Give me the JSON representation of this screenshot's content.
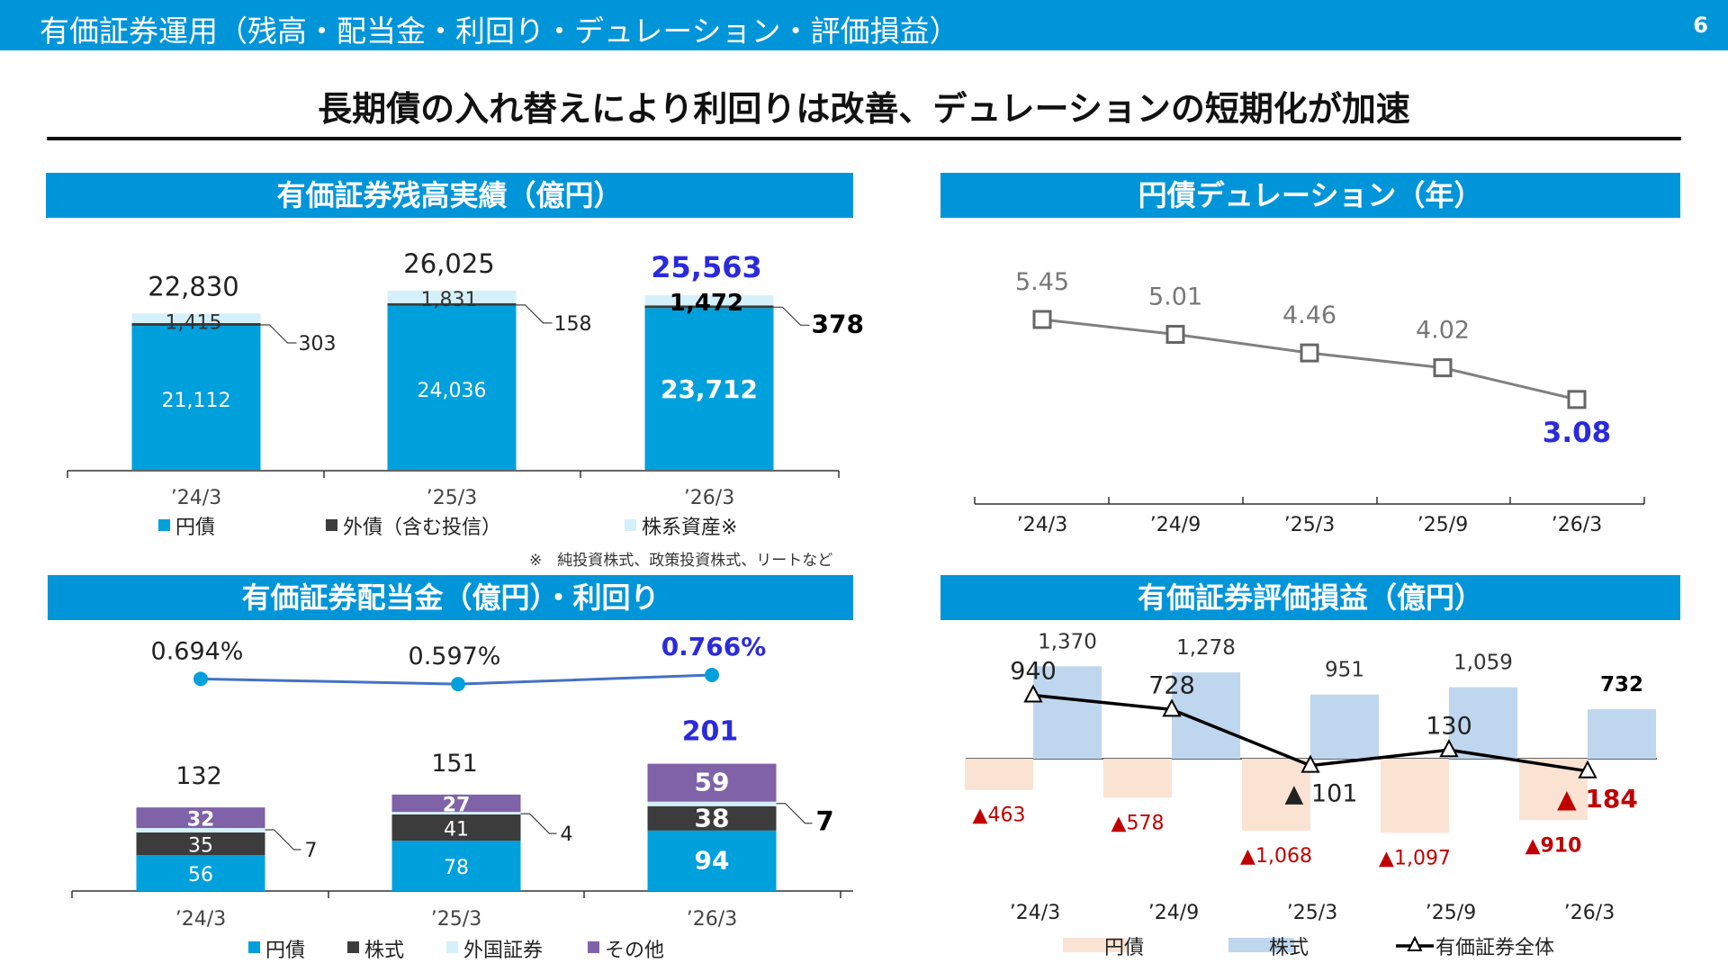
{
  "header": {
    "title": "有価証券運用（残高・配当金・利回り・デュレーション・評価損益）",
    "page_number": "6"
  },
  "headline": "長期債の入れ替えにより利回りは改善、デュレーションの短期化が加速",
  "colors": {
    "brand": "#0095d9",
    "yen_bond": "#00a0dc",
    "foreign_bond": "#3c3c3c",
    "equity_assets": "#d4f0fb",
    "other": "#7f62a8",
    "highlight": "#2b2bdc",
    "loss_text": "#c00000",
    "loss_fill": "#fbe3d4",
    "equity_fill": "#bfd7ee",
    "duration_line": "#808080",
    "yield_line": "#4472c4"
  },
  "panels": {
    "balance": {
      "title": "有価証券残高実績（億円）",
      "note": "※　純投資株式、政策投資株式、リートなど"
    },
    "duration": {
      "title": "円債デュレーション（年）"
    },
    "dividend": {
      "title": "有価証券配当金（億円）・利回り"
    },
    "valuation": {
      "title": "有価証券評価損益（億円）"
    }
  },
  "chart_data": [
    {
      "type": "bar",
      "stacked": true,
      "title": "有価証券残高実績（億円）",
      "categories": [
        "’24/3",
        "’25/3",
        "’26/3"
      ],
      "series": [
        {
          "name": "円債",
          "values": [
            21112,
            24036,
            23712
          ]
        },
        {
          "name": "外債（含む投信）",
          "values": [
            303,
            158,
            378
          ]
        },
        {
          "name": "株系資産※",
          "values": [
            1415,
            1831,
            1472
          ]
        }
      ],
      "totals": [
        22830,
        26025,
        25563
      ],
      "labels": {
        "totals": [
          "22,830",
          "26,025",
          "25,563"
        ],
        "yen_bond": [
          "21,112",
          "24,036",
          "23,712"
        ],
        "foreign": [
          "303",
          "158",
          "378"
        ],
        "equity": [
          "1,415",
          "1,831",
          "1,472"
        ]
      },
      "legend_position": "bottom"
    },
    {
      "type": "line",
      "title": "円債デュレーション（年）",
      "categories": [
        "’24/3",
        "’24/9",
        "’25/3",
        "’25/9",
        "’26/3"
      ],
      "values": [
        5.45,
        5.01,
        4.46,
        4.02,
        3.08
      ],
      "labels": [
        "5.45",
        "5.01",
        "4.46",
        "4.02",
        "3.08"
      ]
    },
    {
      "type": "bar",
      "stacked": true,
      "title": "有価証券配当金（億円）・利回り",
      "categories": [
        "’24/3",
        "’25/3",
        "’26/3"
      ],
      "series": [
        {
          "name": "円債",
          "values": [
            56,
            78,
            94
          ]
        },
        {
          "name": "株式",
          "values": [
            35,
            41,
            38
          ]
        },
        {
          "name": "外国証券",
          "values": [
            7,
            4,
            7
          ]
        },
        {
          "name": "その他",
          "values": [
            32,
            27,
            59
          ]
        }
      ],
      "totals": [
        132,
        151,
        201
      ],
      "labels": {
        "totals": [
          "132",
          "151",
          "201"
        ],
        "yen_bond": [
          "56",
          "78",
          "94"
        ],
        "stock": [
          "35",
          "41",
          "38"
        ],
        "foreign": [
          "7",
          "4",
          "7"
        ],
        "other": [
          "32",
          "27",
          "59"
        ]
      },
      "yield": {
        "values": [
          0.694,
          0.597,
          0.766
        ],
        "labels": [
          "0.694%",
          "0.597%",
          "0.766%"
        ]
      },
      "legend_position": "bottom"
    },
    {
      "type": "bar",
      "title": "有価証券評価損益（億円）",
      "categories": [
        "’24/3",
        "’24/9",
        "’25/3",
        "’25/9",
        "’26/3"
      ],
      "series": [
        {
          "name": "円債",
          "values": [
            -463,
            -578,
            -1068,
            -1097,
            -910
          ],
          "labels": [
            "▲463",
            "▲578",
            "▲1,068",
            "▲1,097",
            "▲910"
          ]
        },
        {
          "name": "株式",
          "values": [
            1370,
            1278,
            951,
            1059,
            732
          ],
          "labels": [
            "1,370",
            "1,278",
            "951",
            "1,059",
            "732"
          ]
        },
        {
          "name": "有価証券全体",
          "type": "line",
          "values": [
            940,
            728,
            -101,
            130,
            -184
          ],
          "labels": [
            "940",
            "728",
            "▲ 101",
            "130",
            "▲ 184"
          ]
        }
      ],
      "legend_position": "bottom"
    }
  ]
}
